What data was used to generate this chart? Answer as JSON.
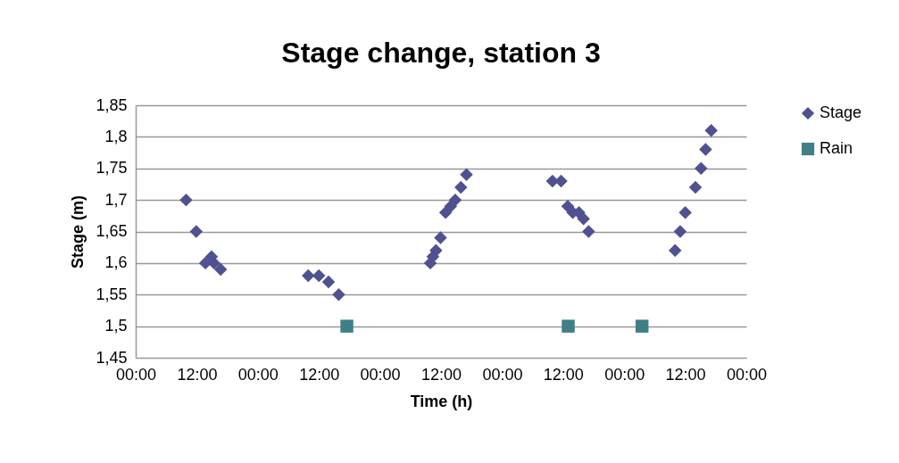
{
  "chart_data": {
    "type": "scatter",
    "title": "Stage change, station 3",
    "xlabel": "Time (h)",
    "ylabel": "Stage (m)",
    "series": [
      {
        "name": "Stage",
        "color": "#4f5190",
        "marker": "diamond",
        "x": [
          "2000-01-01T09:54",
          "2000-01-01T11:54",
          "2000-01-01T13:42",
          "2000-01-01T14:54",
          "2000-01-01T15:24",
          "2000-01-01T16:42",
          "2000-01-02T09:54",
          "2000-01-02T12:00",
          "2000-01-02T13:54",
          "2000-01-02T15:54",
          "2000-01-03T09:54",
          "2000-01-03T10:24",
          "2000-01-03T11:00",
          "2000-01-03T11:54",
          "2000-01-03T12:54",
          "2000-01-03T13:54",
          "2000-01-03T14:48",
          "2000-01-03T15:54",
          "2000-01-03T17:00",
          "2000-01-04T09:54",
          "2000-01-04T11:36",
          "2000-01-04T12:54",
          "2000-01-04T13:54",
          "2000-01-04T15:06",
          "2000-01-04T16:00",
          "2000-01-04T17:00",
          "2000-01-05T10:00",
          "2000-01-05T11:00",
          "2000-01-05T12:00",
          "2000-01-05T14:00",
          "2000-01-05T15:06",
          "2000-01-05T16:00",
          "2000-01-05T17:06"
        ],
        "values": [
          1.7,
          1.65,
          1.6,
          1.61,
          1.6,
          1.59,
          1.58,
          1.58,
          1.57,
          1.55,
          1.6,
          1.61,
          1.62,
          1.64,
          1.68,
          1.69,
          1.7,
          1.72,
          1.74,
          1.73,
          1.73,
          1.69,
          1.68,
          1.68,
          1.67,
          1.65,
          1.62,
          1.65,
          1.68,
          1.72,
          1.75,
          1.78,
          1.81
        ]
      },
      {
        "name": "Rain",
        "color": "#3f8086",
        "marker": "square",
        "x": [
          "2000-01-02T17:30",
          "2000-01-04T13:00",
          "2000-01-05T03:30"
        ],
        "values": [
          1.5,
          1.5,
          1.5
        ]
      }
    ],
    "xlim": [
      "2000-01-01T00:00",
      "2000-01-06T00:00"
    ],
    "xticks": [
      {
        "value": "2000-01-01T00:00",
        "label": "00:00"
      },
      {
        "value": "2000-01-01T12:00",
        "label": "12:00"
      },
      {
        "value": "2000-01-02T00:00",
        "label": "00:00"
      },
      {
        "value": "2000-01-02T12:00",
        "label": "12:00"
      },
      {
        "value": "2000-01-03T00:00",
        "label": "00:00"
      },
      {
        "value": "2000-01-03T12:00",
        "label": "12:00"
      },
      {
        "value": "2000-01-04T00:00",
        "label": "00:00"
      },
      {
        "value": "2000-01-04T12:00",
        "label": "12:00"
      },
      {
        "value": "2000-01-05T00:00",
        "label": "00:00"
      },
      {
        "value": "2000-01-05T12:00",
        "label": "12:00"
      },
      {
        "value": "2000-01-06T00:00",
        "label": "00:00"
      }
    ],
    "ylim": [
      1.45,
      1.85
    ],
    "yticks": [
      {
        "value": 1.45,
        "label": "1,45"
      },
      {
        "value": 1.5,
        "label": "1,5"
      },
      {
        "value": 1.55,
        "label": "1,55"
      },
      {
        "value": 1.6,
        "label": "1,6"
      },
      {
        "value": 1.65,
        "label": "1,65"
      },
      {
        "value": 1.7,
        "label": "1,7"
      },
      {
        "value": 1.75,
        "label": "1,75"
      },
      {
        "value": 1.8,
        "label": "1,8"
      },
      {
        "value": 1.85,
        "label": "1,85"
      }
    ],
    "grid": "y",
    "legend": "right"
  }
}
